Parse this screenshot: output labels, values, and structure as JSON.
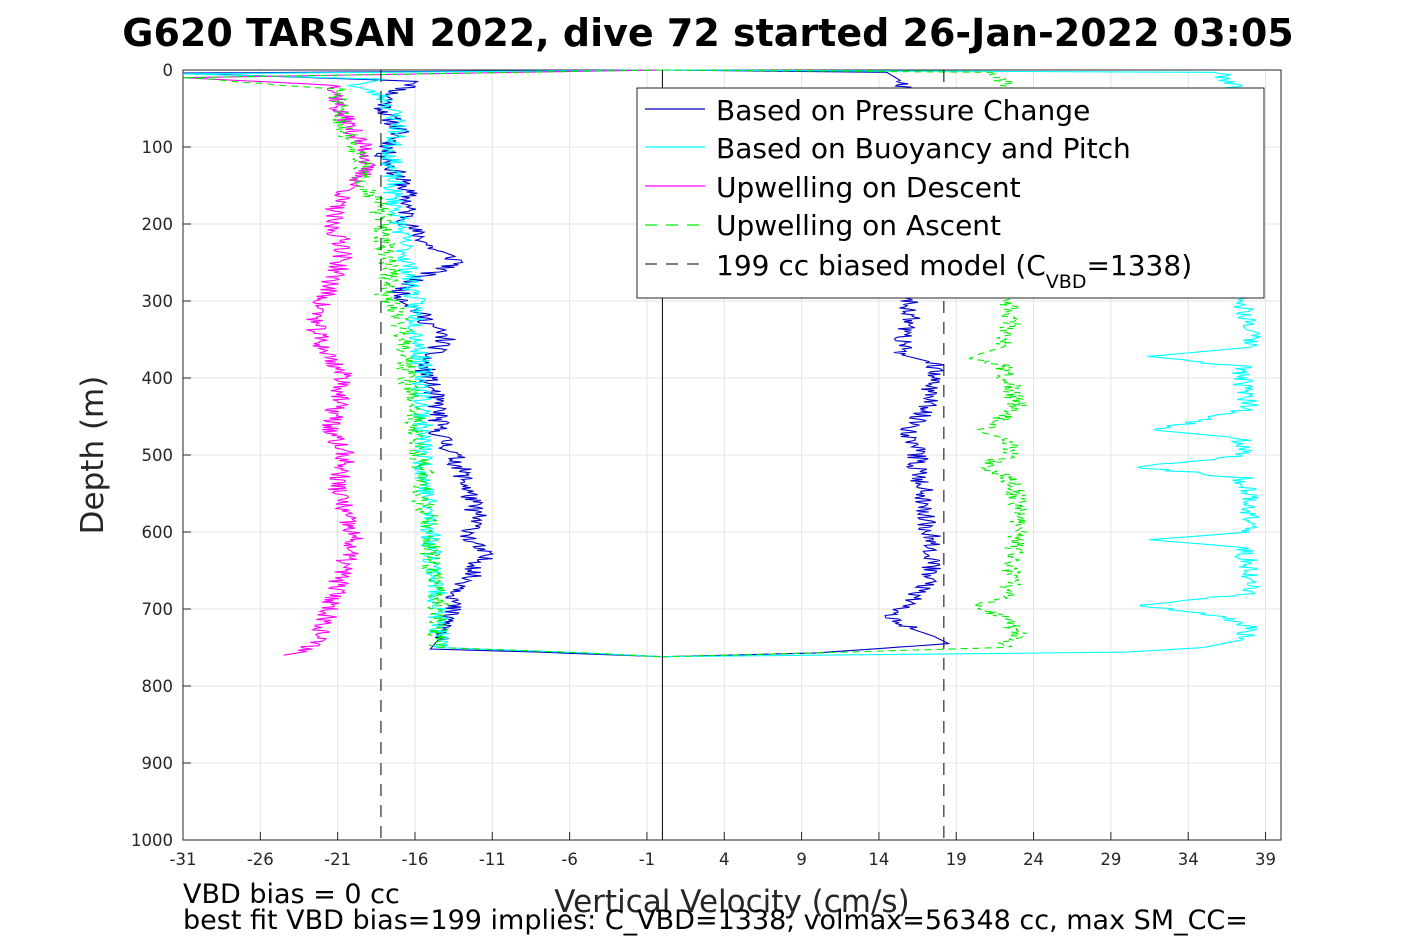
{
  "chart_data": {
    "type": "line",
    "title": "G620 TARSAN 2022, dive 72 started 26-Jan-2022 03:05",
    "xlabel": "Vertical Velocity (cm/s)",
    "ylabel": "Depth (m)",
    "xlim": [
      -31,
      40
    ],
    "ylim": [
      0,
      1000
    ],
    "y_reversed": true,
    "xticks": [
      "-31",
      "-26",
      "-21",
      "-16",
      "-11",
      "-6",
      "-1",
      "4",
      "9",
      "14",
      "19",
      "24",
      "29",
      "34",
      "39"
    ],
    "xtick_values": [
      -31,
      -26,
      -21,
      -16,
      -11,
      -6,
      -1,
      4,
      9,
      14,
      19,
      24,
      29,
      34,
      39
    ],
    "yticks": [
      "0",
      "100",
      "200",
      "300",
      "400",
      "500",
      "600",
      "700",
      "800",
      "900",
      "1000"
    ],
    "ytick_values": [
      0,
      100,
      200,
      300,
      400,
      500,
      600,
      700,
      800,
      900,
      1000
    ],
    "grid": true,
    "legend_position": "top-right",
    "legend": {
      "pressure": "Based on Pressure Change",
      "buoyancy": "Based on Buoyancy and Pitch",
      "up_descent": "Upwelling on Descent",
      "up_ascent": "Upwelling on Ascent",
      "model_prefix": "199 cc biased model (C",
      "model_sub": "VBD",
      "model_suffix": "=1338)"
    },
    "zero_line_x": 0,
    "model_lines_x": [
      -18.2,
      18.2
    ],
    "series": [
      {
        "key": "pressure_descent",
        "legend": "pressure",
        "color": "#0000cc",
        "dash": "none",
        "seed": 11,
        "points": [
          [
            0,
            0
          ],
          [
            -31,
            4
          ],
          [
            -15.5,
            15
          ],
          [
            -17.5,
            30
          ],
          [
            -18,
            50
          ],
          [
            -17,
            80
          ],
          [
            -18,
            110
          ],
          [
            -17,
            140
          ],
          [
            -16.5,
            160
          ],
          [
            -16.5,
            200
          ],
          [
            -15,
            230
          ],
          [
            -13,
            250
          ],
          [
            -16,
            270
          ],
          [
            -17,
            290
          ],
          [
            -16,
            310
          ],
          [
            -15,
            330
          ],
          [
            -14,
            350
          ],
          [
            -15.5,
            380
          ],
          [
            -15,
            410
          ],
          [
            -14.5,
            440
          ],
          [
            -14.5,
            470
          ],
          [
            -13.5,
            500
          ],
          [
            -13,
            520
          ],
          [
            -12.5,
            550
          ],
          [
            -12,
            580
          ],
          [
            -12.5,
            610
          ],
          [
            -11.5,
            630
          ],
          [
            -12.5,
            660
          ],
          [
            -13.5,
            690
          ],
          [
            -14,
            720
          ],
          [
            -14.5,
            740
          ],
          [
            -15,
            752
          ],
          [
            -8,
            756
          ],
          [
            0,
            762
          ]
        ]
      },
      {
        "key": "buoyancy_descent",
        "legend": "buoyancy",
        "color": "#00ffff",
        "dash": "none",
        "seed": 23,
        "points": [
          [
            0,
            0
          ],
          [
            -31,
            5
          ],
          [
            -18,
            12
          ],
          [
            -20,
            20
          ],
          [
            -18,
            35
          ],
          [
            -17,
            70
          ],
          [
            -17.5,
            100
          ],
          [
            -17.5,
            150
          ],
          [
            -17,
            200
          ],
          [
            -16.5,
            250
          ],
          [
            -16,
            300
          ],
          [
            -15.5,
            400
          ],
          [
            -15.5,
            500
          ],
          [
            -15,
            600
          ],
          [
            -14.5,
            700
          ],
          [
            -14.5,
            750
          ],
          [
            -5,
            757
          ],
          [
            0,
            762
          ]
        ]
      },
      {
        "key": "up_descent",
        "legend": "up_descent",
        "color": "#ff00ff",
        "dash": "none",
        "seed": 37,
        "points": [
          [
            0,
            0
          ],
          [
            -31,
            10
          ],
          [
            -21,
            20
          ],
          [
            -21,
            50
          ],
          [
            -20,
            80
          ],
          [
            -19,
            110
          ],
          [
            -19.5,
            140
          ],
          [
            -21,
            170
          ],
          [
            -21.5,
            200
          ],
          [
            -20.5,
            230
          ],
          [
            -21,
            260
          ],
          [
            -22,
            300
          ],
          [
            -22.5,
            330
          ],
          [
            -22,
            360
          ],
          [
            -20.5,
            400
          ],
          [
            -21,
            430
          ],
          [
            -21.5,
            470
          ],
          [
            -20.5,
            500
          ],
          [
            -21,
            540
          ],
          [
            -20.5,
            580
          ],
          [
            -20,
            610
          ],
          [
            -20.5,
            640
          ],
          [
            -21,
            670
          ],
          [
            -21.5,
            700
          ],
          [
            -22,
            730
          ],
          [
            -23,
            755
          ],
          [
            -24.5,
            760
          ]
        ]
      },
      {
        "key": "up_ascent",
        "legend": "up_ascent",
        "color": "#00ee00",
        "dash": "7,5",
        "seed": 51,
        "points": [
          [
            0,
            0
          ],
          [
            -31,
            10
          ],
          [
            -21,
            25
          ],
          [
            -21,
            50
          ],
          [
            -20.5,
            80
          ],
          [
            -19.5,
            110
          ],
          [
            -19.5,
            140
          ],
          [
            -18.5,
            170
          ],
          [
            -18,
            200
          ],
          [
            -18,
            230
          ],
          [
            -17.5,
            260
          ],
          [
            -18,
            290
          ],
          [
            -17,
            320
          ],
          [
            -16.5,
            360
          ],
          [
            -16.5,
            400
          ],
          [
            -16,
            440
          ],
          [
            -16,
            480
          ],
          [
            -15.5,
            520
          ],
          [
            -15.5,
            560
          ],
          [
            -15,
            600
          ],
          [
            -15,
            640
          ],
          [
            -14.5,
            680
          ],
          [
            -14.5,
            720
          ],
          [
            -14.5,
            750
          ],
          [
            -5,
            757
          ],
          [
            0,
            762
          ]
        ]
      },
      {
        "key": "pressure_ascent",
        "legend": "pressure",
        "color": "#0000cc",
        "dash": "none",
        "seed": 67,
        "points": [
          [
            0,
            0
          ],
          [
            14.5,
            3
          ],
          [
            15.5,
            15
          ],
          [
            16.5,
            40
          ],
          [
            16,
            80
          ],
          [
            16.5,
            120
          ],
          [
            16.5,
            160
          ],
          [
            16.5,
            200
          ],
          [
            16,
            250
          ],
          [
            16,
            300
          ],
          [
            16,
            330
          ],
          [
            15.5,
            350
          ],
          [
            15.5,
            370
          ],
          [
            17.5,
            380
          ],
          [
            17.5,
            410
          ],
          [
            17,
            440
          ],
          [
            16,
            470
          ],
          [
            16.5,
            500
          ],
          [
            16.5,
            520
          ],
          [
            17,
            550
          ],
          [
            17,
            580
          ],
          [
            17.5,
            610
          ],
          [
            17.5,
            640
          ],
          [
            17,
            670
          ],
          [
            16,
            690
          ],
          [
            15,
            710
          ],
          [
            16,
            725
          ],
          [
            17.5,
            735
          ],
          [
            18.5,
            745
          ],
          [
            10,
            757
          ],
          [
            0,
            762
          ]
        ]
      },
      {
        "key": "buoyancy_ascent",
        "legend": "buoyancy",
        "color": "#00ffff",
        "dash": "none",
        "seed": 79,
        "points": [
          [
            0,
            0
          ],
          [
            36,
            3
          ],
          [
            37,
            20
          ],
          [
            37.5,
            60
          ],
          [
            37.5,
            100
          ],
          [
            37.5,
            150
          ],
          [
            37.5,
            200
          ],
          [
            37.5,
            250
          ],
          [
            37.5,
            300
          ],
          [
            38,
            330
          ],
          [
            38,
            360
          ],
          [
            31.5,
            372
          ],
          [
            37.5,
            385
          ],
          [
            37.5,
            410
          ],
          [
            38,
            440
          ],
          [
            32,
            468
          ],
          [
            37.5,
            478
          ],
          [
            37.5,
            500
          ],
          [
            31,
            516
          ],
          [
            37.5,
            530
          ],
          [
            38,
            560
          ],
          [
            38,
            600
          ],
          [
            31.5,
            610
          ],
          [
            37.5,
            620
          ],
          [
            38,
            650
          ],
          [
            38,
            680
          ],
          [
            31,
            695
          ],
          [
            36,
            710
          ],
          [
            38,
            725
          ],
          [
            37.5,
            740
          ],
          [
            35,
            750
          ],
          [
            30,
            756
          ],
          [
            0,
            762
          ]
        ]
      },
      {
        "key": "up_ascent_2",
        "legend": "up_ascent",
        "color": "#00ee00",
        "dash": "7,5",
        "seed": 91,
        "points": [
          [
            0,
            0
          ],
          [
            21.5,
            3
          ],
          [
            22.5,
            20
          ],
          [
            22.5,
            60
          ],
          [
            22.5,
            100
          ],
          [
            22.5,
            150
          ],
          [
            22.5,
            200
          ],
          [
            22.5,
            250
          ],
          [
            22.5,
            300
          ],
          [
            22.5,
            330
          ],
          [
            22,
            360
          ],
          [
            20,
            372
          ],
          [
            22,
            385
          ],
          [
            22.5,
            410
          ],
          [
            23,
            440
          ],
          [
            20.5,
            470
          ],
          [
            22.5,
            480
          ],
          [
            22.5,
            500
          ],
          [
            20.5,
            515
          ],
          [
            22.5,
            530
          ],
          [
            23,
            560
          ],
          [
            23,
            600
          ],
          [
            22.5,
            640
          ],
          [
            22.5,
            680
          ],
          [
            20.5,
            695
          ],
          [
            22,
            710
          ],
          [
            23,
            730
          ],
          [
            22,
            750
          ],
          [
            10,
            757
          ],
          [
            0,
            762
          ]
        ]
      }
    ]
  },
  "footer": {
    "line1": "VBD bias = 0 cc",
    "line2": "best fit VBD bias=199 implies: C_VBD=1338, volmax=56348 cc, max SM_CC="
  }
}
